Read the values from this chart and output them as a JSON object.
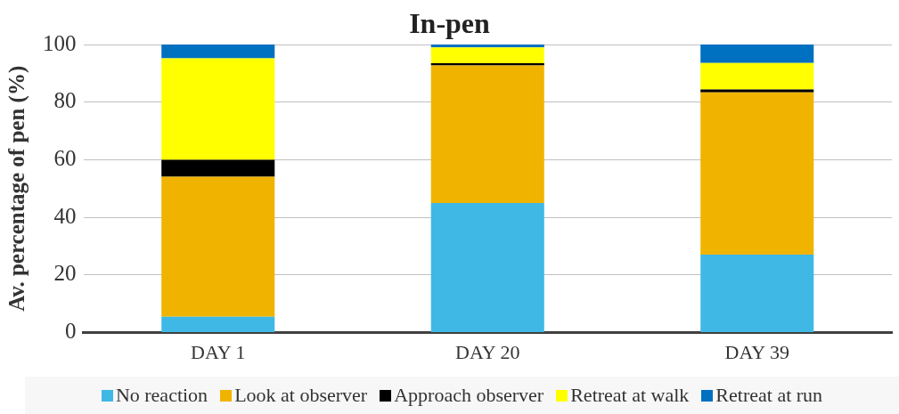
{
  "chart_data": {
    "type": "bar",
    "title": "In-pen",
    "ylabel": "Av. percentage of pen (%)",
    "categories": [
      "DAY 1",
      "DAY 20",
      "DAY 39"
    ],
    "stacked": true,
    "series": [
      {
        "name": "No reaction",
        "color": "#3fb8e6",
        "values": [
          5.5,
          45,
          27.1
        ]
      },
      {
        "name": "Look at observer",
        "color": "#f0b400",
        "values": [
          48.6,
          47.7,
          56.3
        ]
      },
      {
        "name": "Approach observer",
        "color": "#000000",
        "values": [
          5.9,
          0.8,
          1.0
        ]
      },
      {
        "name": "Retreat at walk",
        "color": "#ffff00",
        "values": [
          35.2,
          5.5,
          9.2
        ]
      },
      {
        "name": "Retreat at run",
        "color": "#0070c0",
        "values": [
          4.8,
          1.0,
          6.4
        ]
      }
    ],
    "ylim": [
      0,
      100
    ],
    "yticks": [
      0,
      20,
      40,
      60,
      80,
      100
    ],
    "grid": "y",
    "legend": "bottom"
  }
}
